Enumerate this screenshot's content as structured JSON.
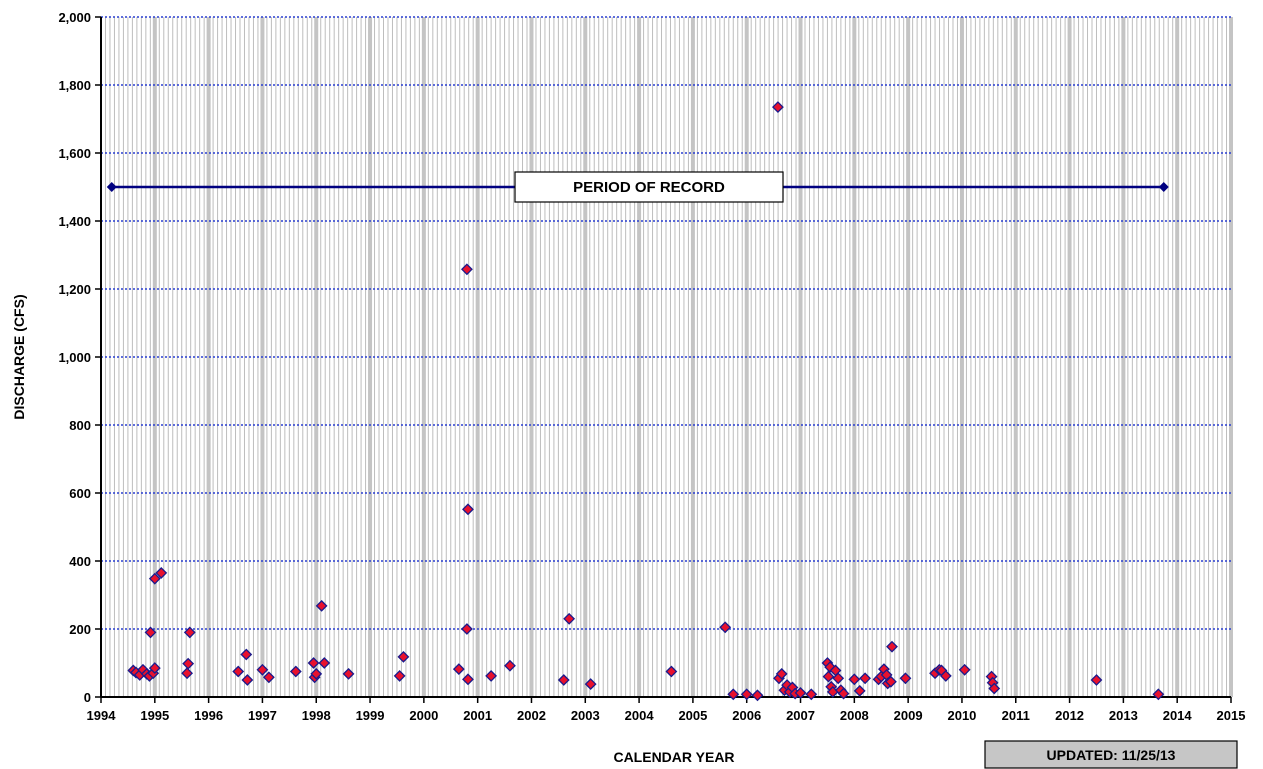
{
  "chart_data": {
    "type": "scatter",
    "title": "",
    "xlabel": "CALENDAR  YEAR",
    "ylabel": "DISCHARGE  (CFS)",
    "xlim": [
      1994,
      2015
    ],
    "ylim": [
      0,
      2000
    ],
    "x_ticks": [
      1994,
      1995,
      1996,
      1997,
      1998,
      1999,
      2000,
      2001,
      2002,
      2003,
      2004,
      2005,
      2006,
      2007,
      2008,
      2009,
      2010,
      2011,
      2012,
      2013,
      2014,
      2015
    ],
    "y_ticks": [
      0,
      200,
      400,
      600,
      800,
      1000,
      1200,
      1400,
      1600,
      1800,
      2000
    ],
    "y_tick_labels": [
      "0",
      "200",
      "400",
      "600",
      "800",
      "1,000",
      "1,200",
      "1,400",
      "1,600",
      "1,800",
      "2,000"
    ],
    "grid": "vertical gray month lines, horizontal dotted blue lines",
    "marker_color": "#e8112d",
    "marker_edge_color": "#1a1a8c",
    "period_of_record": {
      "label": "PERIOD  OF  RECORD",
      "start": 1994.2,
      "end": 2013.75,
      "value": 1500,
      "color": "#000080"
    },
    "updated_label": "UPDATED:  11/25/13",
    "points": [
      [
        1994.6,
        78
      ],
      [
        1994.65,
        72
      ],
      [
        1994.72,
        65
      ],
      [
        1994.78,
        80
      ],
      [
        1994.85,
        68
      ],
      [
        1994.9,
        62
      ],
      [
        1994.92,
        190
      ],
      [
        1994.97,
        70
      ],
      [
        1995.0,
        85
      ],
      [
        1995.0,
        348
      ],
      [
        1995.12,
        365
      ],
      [
        1995.6,
        70
      ],
      [
        1995.62,
        98
      ],
      [
        1995.65,
        190
      ],
      [
        1996.55,
        75
      ],
      [
        1996.7,
        125
      ],
      [
        1996.72,
        50
      ],
      [
        1997.0,
        80
      ],
      [
        1997.12,
        58
      ],
      [
        1997.62,
        75
      ],
      [
        1997.95,
        100
      ],
      [
        1997.97,
        58
      ],
      [
        1998.0,
        68
      ],
      [
        1998.1,
        268
      ],
      [
        1998.15,
        100
      ],
      [
        1998.6,
        68
      ],
      [
        1999.55,
        62
      ],
      [
        1999.62,
        118
      ],
      [
        2000.65,
        82
      ],
      [
        2000.8,
        200
      ],
      [
        2000.8,
        1258
      ],
      [
        2000.82,
        552
      ],
      [
        2000.82,
        52
      ],
      [
        2001.25,
        62
      ],
      [
        2001.6,
        92
      ],
      [
        2002.6,
        50
      ],
      [
        2002.7,
        230
      ],
      [
        2003.1,
        38
      ],
      [
        2004.6,
        75
      ],
      [
        2005.6,
        205
      ],
      [
        2005.75,
        8
      ],
      [
        2006.0,
        8
      ],
      [
        2006.2,
        5
      ],
      [
        2006.58,
        1735
      ],
      [
        2006.6,
        55
      ],
      [
        2006.65,
        68
      ],
      [
        2006.7,
        20
      ],
      [
        2006.75,
        35
      ],
      [
        2006.8,
        15
      ],
      [
        2006.85,
        28
      ],
      [
        2006.9,
        10
      ],
      [
        2007.0,
        12
      ],
      [
        2007.2,
        8
      ],
      [
        2007.5,
        100
      ],
      [
        2007.52,
        60
      ],
      [
        2007.55,
        88
      ],
      [
        2007.57,
        30
      ],
      [
        2007.6,
        15
      ],
      [
        2007.65,
        78
      ],
      [
        2007.7,
        55
      ],
      [
        2007.75,
        20
      ],
      [
        2007.8,
        10
      ],
      [
        2008.0,
        52
      ],
      [
        2008.1,
        18
      ],
      [
        2008.2,
        55
      ],
      [
        2008.45,
        52
      ],
      [
        2008.5,
        60
      ],
      [
        2008.55,
        82
      ],
      [
        2008.6,
        65
      ],
      [
        2008.62,
        40
      ],
      [
        2008.68,
        45
      ],
      [
        2008.7,
        148
      ],
      [
        2008.95,
        55
      ],
      [
        2009.5,
        70
      ],
      [
        2009.58,
        80
      ],
      [
        2009.62,
        78
      ],
      [
        2009.7,
        62
      ],
      [
        2010.05,
        80
      ],
      [
        2010.55,
        60
      ],
      [
        2010.57,
        42
      ],
      [
        2010.6,
        25
      ],
      [
        2012.5,
        50
      ],
      [
        2013.65,
        8
      ]
    ]
  }
}
